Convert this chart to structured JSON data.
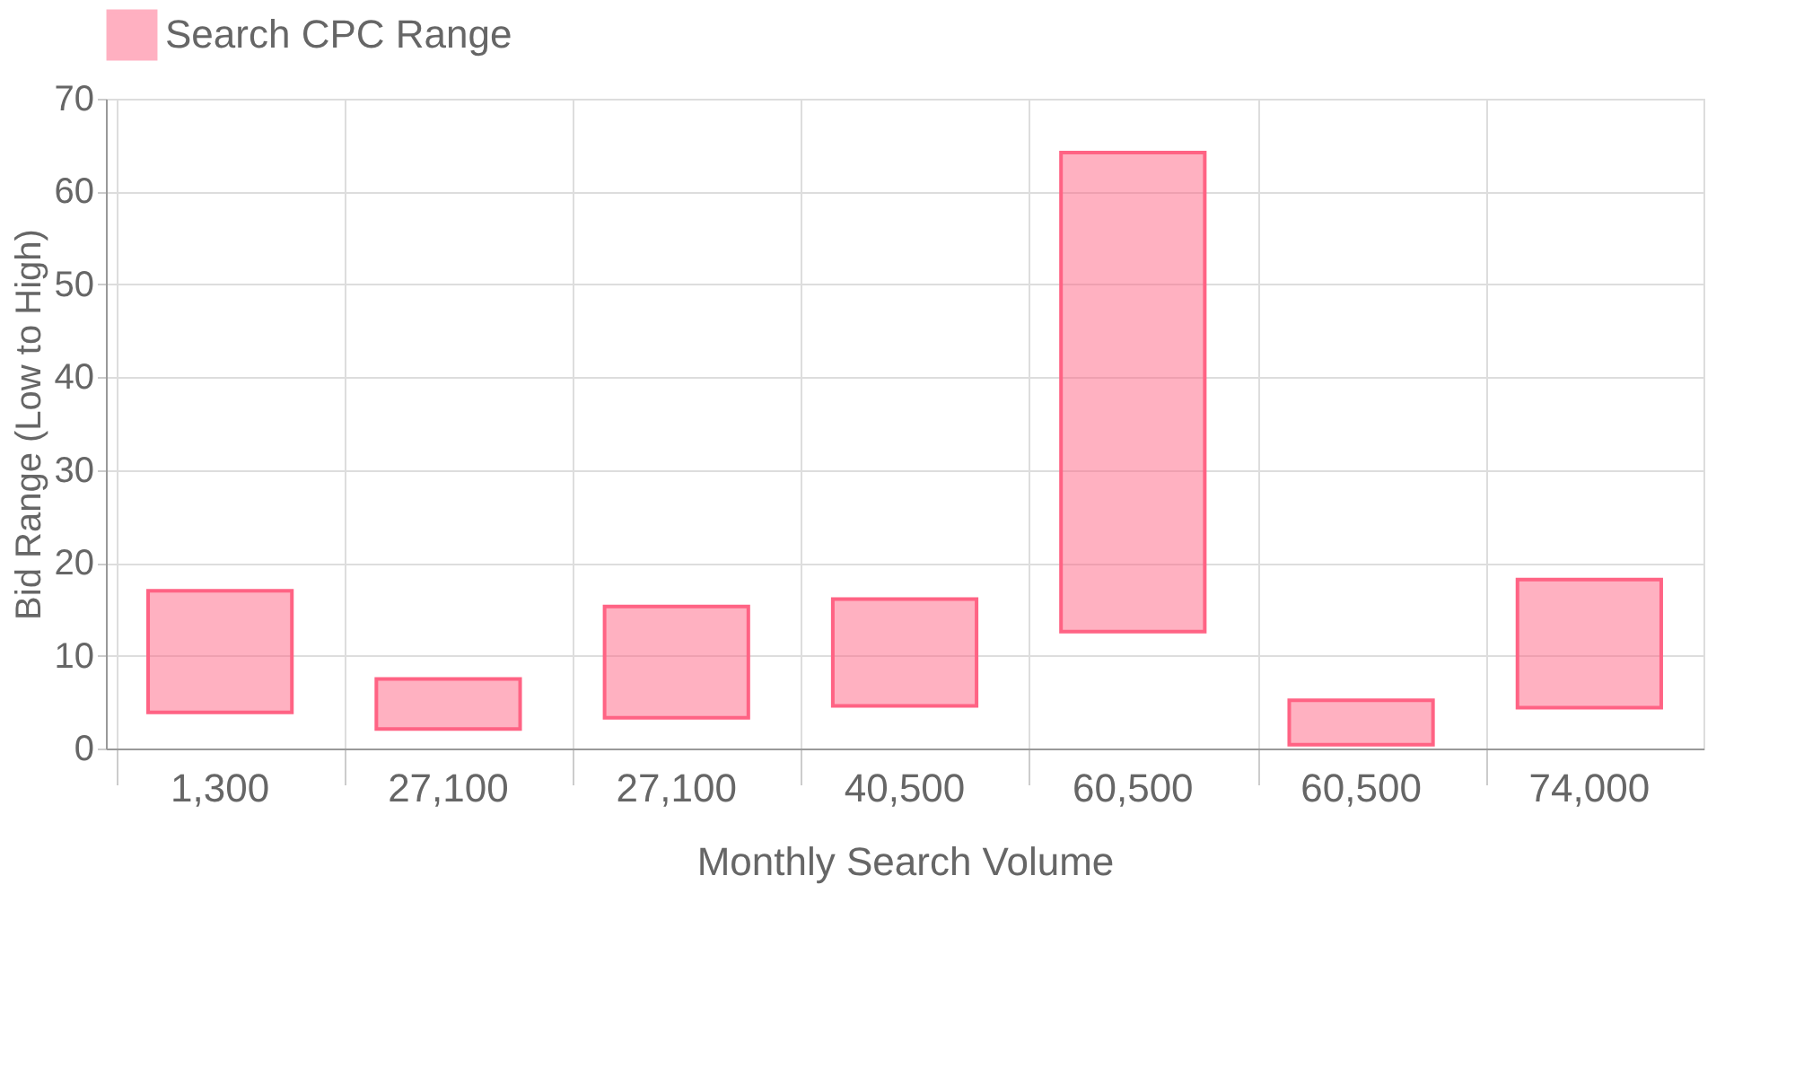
{
  "chart_data": {
    "type": "bar",
    "xlabel": "Monthly Search Volume",
    "ylabel": "Bid Range (Low to High)",
    "categories": [
      "1,300",
      "27,100",
      "27,100",
      "40,500",
      "60,500",
      "60,500",
      "74,000"
    ],
    "series": [
      {
        "name": "Search CPC Range",
        "color": "#ff6384",
        "base": [
          3.9,
          2.1,
          3.3,
          4.6,
          12.6,
          0.4,
          4.4
        ],
        "values": [
          13.1,
          5.4,
          12.0,
          11.5,
          51.6,
          4.8,
          13.8
        ]
      }
    ],
    "ylim": [
      0,
      70
    ],
    "yticks": [
      0,
      10,
      20,
      30,
      40,
      50,
      60,
      70
    ],
    "grid": true,
    "legend": "top"
  }
}
